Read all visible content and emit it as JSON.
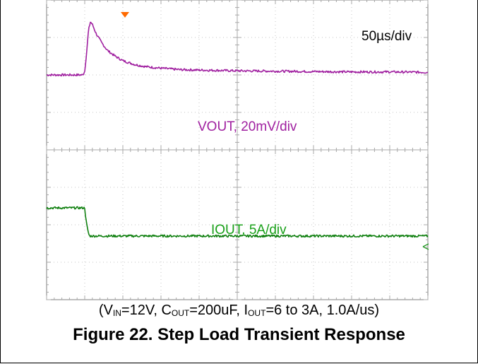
{
  "chart_data": {
    "type": "line",
    "title": "Figure 22. Step Load Transient Response",
    "subtitle": {
      "open": "(V",
      "vin_sub": "IN",
      "vin_val": "=12V, C",
      "cout_sub": "OUT",
      "cout_val": "=200uF, I",
      "iout_sub": "OUT",
      "tail": "=6 to 3A, 1.0A/us)"
    },
    "timebase": "50µs/div",
    "xlabel": "",
    "ylabel": "",
    "grid": true,
    "x_divisions": 10,
    "y_divisions": 8,
    "xlim": [
      0,
      10
    ],
    "ylim": [
      -4,
      4
    ],
    "trigger_position_div": 1.0,
    "series": [
      {
        "name": "VOUT, 20mV/div",
        "color": "#a020a0",
        "x": [
          0,
          0.95,
          1.0,
          1.05,
          1.1,
          1.15,
          1.2,
          1.3,
          1.45,
          1.6,
          1.8,
          2.0,
          2.3,
          2.6,
          3.0,
          3.5,
          4.0,
          5.0,
          6.0,
          7.0,
          8.0,
          9.0,
          10.0
        ],
        "y": [
          2.0,
          2.0,
          2.1,
          2.6,
          3.2,
          3.42,
          3.35,
          3.1,
          2.85,
          2.65,
          2.5,
          2.38,
          2.28,
          2.22,
          2.18,
          2.14,
          2.13,
          2.11,
          2.1,
          2.09,
          2.08,
          2.08,
          2.07
        ]
      },
      {
        "name": "IOUT, 5A/div",
        "color": "#108010",
        "x": [
          0,
          1.0,
          1.03,
          1.07,
          1.12,
          10.0
        ],
        "y": [
          -1.55,
          -1.55,
          -1.85,
          -2.1,
          -2.3,
          -2.3
        ]
      }
    ],
    "annotations": [
      {
        "text": "VOUT, 20mV/div",
        "series": 0
      },
      {
        "text": "IOUT, 5A/div",
        "series": 1
      }
    ]
  }
}
